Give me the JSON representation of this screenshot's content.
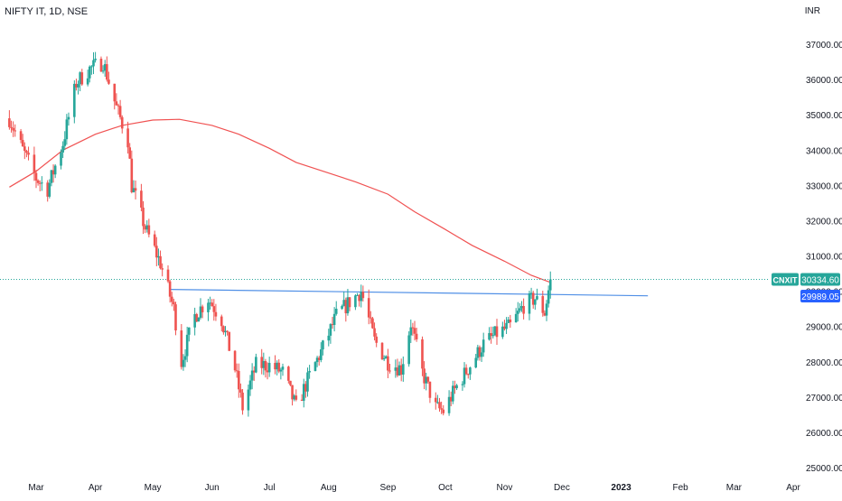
{
  "header": {
    "symbol_title": "NIFTY IT, 1D, NSE",
    "currency": "INR"
  },
  "colors": {
    "up": "#26a69a",
    "down": "#ef5350",
    "ma": "#f05252",
    "trendline": "#4f8fe6",
    "axis_text": "#131722",
    "price_line": "#26a69a"
  },
  "price_tag": {
    "symbol": "CNXIT",
    "value": "30334.60",
    "color": "#26a69a"
  },
  "trend_tag": {
    "value": "29989.05",
    "color": "#2962ff"
  },
  "chart_data": {
    "type": "candlestick",
    "title": "NIFTY IT, 1D, NSE",
    "ylabel": "INR",
    "y_ticks": [
      "37000.00",
      "36000.00",
      "35000.00",
      "34000.00",
      "33000.00",
      "32000.00",
      "31000.00",
      "30000.00",
      "29000.00",
      "28000.00",
      "27000.00",
      "26000.00",
      "25000.00"
    ],
    "y_tick_values": [
      37000,
      36000,
      35000,
      34000,
      33000,
      32000,
      31000,
      30000,
      29000,
      28000,
      27000,
      26000,
      25000
    ],
    "ylim": [
      24700,
      37900
    ],
    "x_ticks": [
      "Mar",
      "Apr",
      "May",
      "Jun",
      "Jul",
      "Aug",
      "Sep",
      "Oct",
      "Nov",
      "Dec",
      "2023",
      "Feb",
      "Mar",
      "Apr"
    ],
    "x_tick_dates": [
      "2022-03-01",
      "2022-04-01",
      "2022-05-01",
      "2022-06-01",
      "2022-07-01",
      "2022-08-01",
      "2022-09-01",
      "2022-10-01",
      "2022-11-01",
      "2022-12-01",
      "2023-01-01",
      "2023-02-01",
      "2023-03-01",
      "2023-04-01"
    ],
    "last_price": 30334.6,
    "trendline": {
      "start": [
        "2022-05-10",
        30050
      ],
      "end": [
        "2023-01-15",
        29870
      ],
      "label_value": 29989.05
    },
    "moving_average": [
      [
        "2022-02-15",
        32950
      ],
      [
        "2022-03-01",
        33400
      ],
      [
        "2022-03-15",
        34000
      ],
      [
        "2022-04-01",
        34450
      ],
      [
        "2022-04-15",
        34700
      ],
      [
        "2022-05-01",
        34850
      ],
      [
        "2022-05-15",
        34870
      ],
      [
        "2022-06-01",
        34700
      ],
      [
        "2022-06-15",
        34450
      ],
      [
        "2022-07-01",
        34050
      ],
      [
        "2022-07-15",
        33650
      ],
      [
        "2022-08-01",
        33350
      ],
      [
        "2022-08-15",
        33100
      ],
      [
        "2022-09-01",
        32750
      ],
      [
        "2022-09-15",
        32250
      ],
      [
        "2022-10-01",
        31750
      ],
      [
        "2022-10-15",
        31300
      ],
      [
        "2022-11-01",
        30850
      ],
      [
        "2022-11-15",
        30450
      ],
      [
        "2022-11-25",
        30250
      ]
    ],
    "price_path": [
      [
        "2022-02-15",
        34900
      ],
      [
        "2022-02-22",
        34000
      ],
      [
        "2022-03-01",
        33200
      ],
      [
        "2022-03-07",
        32900
      ],
      [
        "2022-03-15",
        34200
      ],
      [
        "2022-03-22",
        35900
      ],
      [
        "2022-03-29",
        36300
      ],
      [
        "2022-04-05",
        36500
      ],
      [
        "2022-04-12",
        35200
      ],
      [
        "2022-04-18",
        34300
      ],
      [
        "2022-04-20",
        33000
      ],
      [
        "2022-04-27",
        31800
      ],
      [
        "2022-05-05",
        30800
      ],
      [
        "2022-05-12",
        29500
      ],
      [
        "2022-05-16",
        28000
      ],
      [
        "2022-05-23",
        29300
      ],
      [
        "2022-05-30",
        29800
      ],
      [
        "2022-06-06",
        29200
      ],
      [
        "2022-06-13",
        27800
      ],
      [
        "2022-06-17",
        26700
      ],
      [
        "2022-06-24",
        27900
      ],
      [
        "2022-07-01",
        27900
      ],
      [
        "2022-07-08",
        27700
      ],
      [
        "2022-07-15",
        26700
      ],
      [
        "2022-07-22",
        27600
      ],
      [
        "2022-07-29",
        28400
      ],
      [
        "2022-08-05",
        29300
      ],
      [
        "2022-08-12",
        29700
      ],
      [
        "2022-08-18",
        30000
      ],
      [
        "2022-08-25",
        28600
      ],
      [
        "2022-09-01",
        28000
      ],
      [
        "2022-09-08",
        27800
      ],
      [
        "2022-09-13",
        29100
      ],
      [
        "2022-09-19",
        27700
      ],
      [
        "2022-09-26",
        26700
      ],
      [
        "2022-09-30",
        26600
      ],
      [
        "2022-10-07",
        27300
      ],
      [
        "2022-10-14",
        27900
      ],
      [
        "2022-10-21",
        28500
      ],
      [
        "2022-10-28",
        28800
      ],
      [
        "2022-11-04",
        29000
      ],
      [
        "2022-11-11",
        29600
      ],
      [
        "2022-11-17",
        29800
      ],
      [
        "2022-11-22",
        29400
      ],
      [
        "2022-11-25",
        30334.6
      ]
    ]
  }
}
